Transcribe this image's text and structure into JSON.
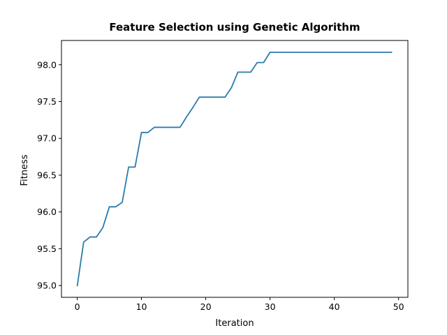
{
  "chart_data": {
    "type": "line",
    "title": "Feature Selection using Genetic Algorithm",
    "xlabel": "Iteration",
    "ylabel": "Fitness",
    "xlim": [
      -2.45,
      51.45
    ],
    "ylim": [
      94.84,
      98.33
    ],
    "xticks": [
      0,
      10,
      20,
      30,
      40,
      50
    ],
    "yticks": [
      95.0,
      95.5,
      96.0,
      96.5,
      97.0,
      97.5,
      98.0
    ],
    "ytick_labels": [
      "95.0",
      "95.5",
      "96.0",
      "96.5",
      "97.0",
      "97.5",
      "98.0"
    ],
    "grid": false,
    "line_color": "#2b7bab",
    "series": [
      {
        "x": [
          0,
          1,
          2,
          3,
          4,
          5,
          6,
          7,
          8,
          9,
          10,
          11,
          12,
          13,
          14,
          15,
          16,
          17,
          18,
          19,
          20,
          21,
          22,
          23,
          24,
          25,
          26,
          27,
          28,
          29,
          30,
          31,
          32,
          33,
          34,
          35,
          36,
          37,
          38,
          39,
          40,
          41,
          42,
          43,
          44,
          45,
          46,
          47,
          48,
          49
        ],
        "values": [
          94.99,
          95.59,
          95.66,
          95.66,
          95.79,
          96.07,
          96.07,
          96.13,
          96.61,
          96.61,
          97.08,
          97.08,
          97.15,
          97.15,
          97.15,
          97.15,
          97.15,
          97.29,
          97.42,
          97.56,
          97.56,
          97.56,
          97.56,
          97.56,
          97.69,
          97.9,
          97.9,
          97.9,
          98.03,
          98.03,
          98.17,
          98.17,
          98.17,
          98.17,
          98.17,
          98.17,
          98.17,
          98.17,
          98.17,
          98.17,
          98.17,
          98.17,
          98.17,
          98.17,
          98.17,
          98.17,
          98.17,
          98.17,
          98.17,
          98.17
        ]
      }
    ]
  }
}
